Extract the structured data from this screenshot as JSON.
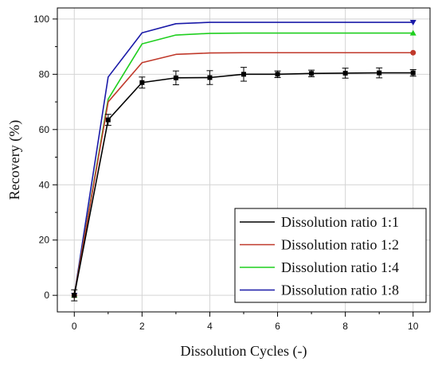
{
  "chart_data": {
    "type": "line",
    "xlabel": "Dissolution Cycles (-)",
    "ylabel": "Recovery (%)",
    "xlim": [
      -0.5,
      10.5
    ],
    "ylim": [
      -6,
      104
    ],
    "x_ticks": [
      0,
      2,
      4,
      6,
      8,
      10
    ],
    "y_ticks": [
      0,
      20,
      40,
      60,
      80,
      100
    ],
    "grid": true,
    "legend_position": "bottom-right",
    "x": [
      0,
      1,
      2,
      3,
      4,
      5,
      6,
      7,
      8,
      9,
      10
    ],
    "series": [
      {
        "name": "Dissolution ratio 1:1",
        "color": "#000000",
        "marker": "square",
        "values": [
          0,
          63.5,
          77,
          78.7,
          78.8,
          80,
          80,
          80.3,
          80.4,
          80.5,
          80.5
        ],
        "error": [
          2,
          2,
          2,
          2.5,
          2.5,
          2.5,
          1.2,
          1.2,
          1.8,
          1.8,
          1.2
        ]
      },
      {
        "name": "Dissolution ratio 1:2",
        "color": "#c0392b",
        "marker": "circle",
        "values": [
          0,
          70,
          84.2,
          87.2,
          87.7,
          87.8,
          87.8,
          87.8,
          87.8,
          87.8,
          87.8
        ]
      },
      {
        "name": "Dissolution ratio 1:4",
        "color": "#1fcf1f",
        "marker": "triangle-up",
        "values": [
          0,
          71,
          91,
          94.2,
          94.8,
          94.9,
          94.9,
          94.9,
          94.9,
          94.9,
          94.9
        ]
      },
      {
        "name": "Dissolution ratio 1:8",
        "color": "#1a1aa8",
        "marker": "triangle-down",
        "values": [
          0,
          79,
          95,
          98.3,
          98.8,
          98.8,
          98.8,
          98.8,
          98.8,
          98.8,
          98.8
        ]
      }
    ]
  }
}
